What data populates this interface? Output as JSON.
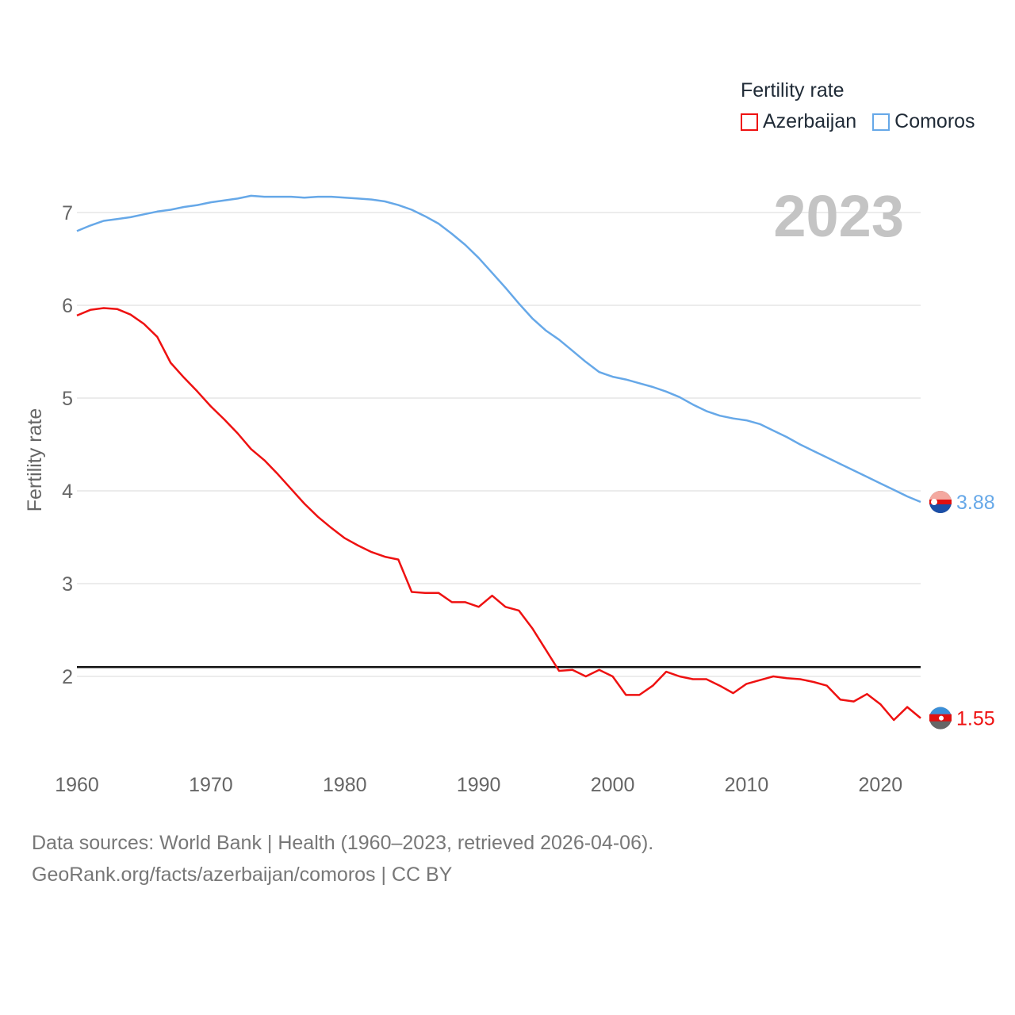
{
  "legend": {
    "title": "Fertility rate",
    "items": [
      {
        "label": "Azerbaijan",
        "color": "#ee1111"
      },
      {
        "label": "Comoros",
        "color": "#66a8e8"
      }
    ]
  },
  "year_watermark": "2023",
  "footer": {
    "line1": "Data sources: World Bank | Health (1960–2023, retrieved 2026-04-06).",
    "line2": "GeoRank.org/facts/azerbaijan/comoros | CC BY"
  },
  "chart_data": {
    "type": "line",
    "ylabel": "Fertility rate",
    "xlabel": "",
    "xlim": [
      1960,
      2023
    ],
    "ylim": [
      1,
      7.5
    ],
    "x_ticks": [
      1960,
      1970,
      1980,
      1990,
      2000,
      2010,
      2020
    ],
    "y_ticks": [
      2,
      3,
      4,
      5,
      6,
      7
    ],
    "reference_line": 2.1,
    "x": [
      1960,
      1961,
      1962,
      1963,
      1964,
      1965,
      1966,
      1967,
      1968,
      1969,
      1970,
      1971,
      1972,
      1973,
      1974,
      1975,
      1976,
      1977,
      1978,
      1979,
      1980,
      1981,
      1982,
      1983,
      1984,
      1985,
      1986,
      1987,
      1988,
      1989,
      1990,
      1991,
      1992,
      1993,
      1994,
      1995,
      1996,
      1997,
      1998,
      1999,
      2000,
      2001,
      2002,
      2003,
      2004,
      2005,
      2006,
      2007,
      2008,
      2009,
      2010,
      2011,
      2012,
      2013,
      2014,
      2015,
      2016,
      2017,
      2018,
      2019,
      2020,
      2021,
      2022,
      2023
    ],
    "series": [
      {
        "name": "Azerbaijan",
        "color": "#ee1111",
        "end_label": "1.55",
        "values": [
          5.89,
          5.95,
          5.97,
          5.96,
          5.9,
          5.8,
          5.66,
          5.38,
          5.22,
          5.07,
          4.91,
          4.77,
          4.62,
          4.45,
          4.33,
          4.18,
          4.02,
          3.86,
          3.72,
          3.6,
          3.49,
          3.41,
          3.34,
          3.29,
          3.26,
          2.91,
          2.9,
          2.9,
          2.8,
          2.8,
          2.75,
          2.87,
          2.75,
          2.71,
          2.52,
          2.29,
          2.06,
          2.07,
          2.0,
          2.07,
          2.0,
          1.8,
          1.8,
          1.9,
          2.05,
          2.0,
          1.97,
          1.97,
          1.9,
          1.82,
          1.92,
          1.96,
          2.0,
          1.98,
          1.97,
          1.94,
          1.9,
          1.75,
          1.73,
          1.81,
          1.7,
          1.53,
          1.67,
          1.55
        ]
      },
      {
        "name": "Comoros",
        "color": "#66a8e8",
        "end_label": "3.88",
        "values": [
          6.8,
          6.86,
          6.91,
          6.93,
          6.95,
          6.98,
          7.01,
          7.03,
          7.06,
          7.08,
          7.11,
          7.13,
          7.15,
          7.18,
          7.17,
          7.17,
          7.17,
          7.16,
          7.17,
          7.17,
          7.16,
          7.15,
          7.14,
          7.12,
          7.08,
          7.03,
          6.96,
          6.88,
          6.77,
          6.65,
          6.51,
          6.35,
          6.19,
          6.02,
          5.86,
          5.73,
          5.63,
          5.51,
          5.39,
          5.28,
          5.23,
          5.2,
          5.16,
          5.12,
          5.07,
          5.01,
          4.93,
          4.86,
          4.81,
          4.78,
          4.76,
          4.72,
          4.65,
          4.58,
          4.5,
          4.43,
          4.36,
          4.29,
          4.22,
          4.15,
          4.08,
          4.01,
          3.94,
          3.88
        ]
      }
    ]
  }
}
